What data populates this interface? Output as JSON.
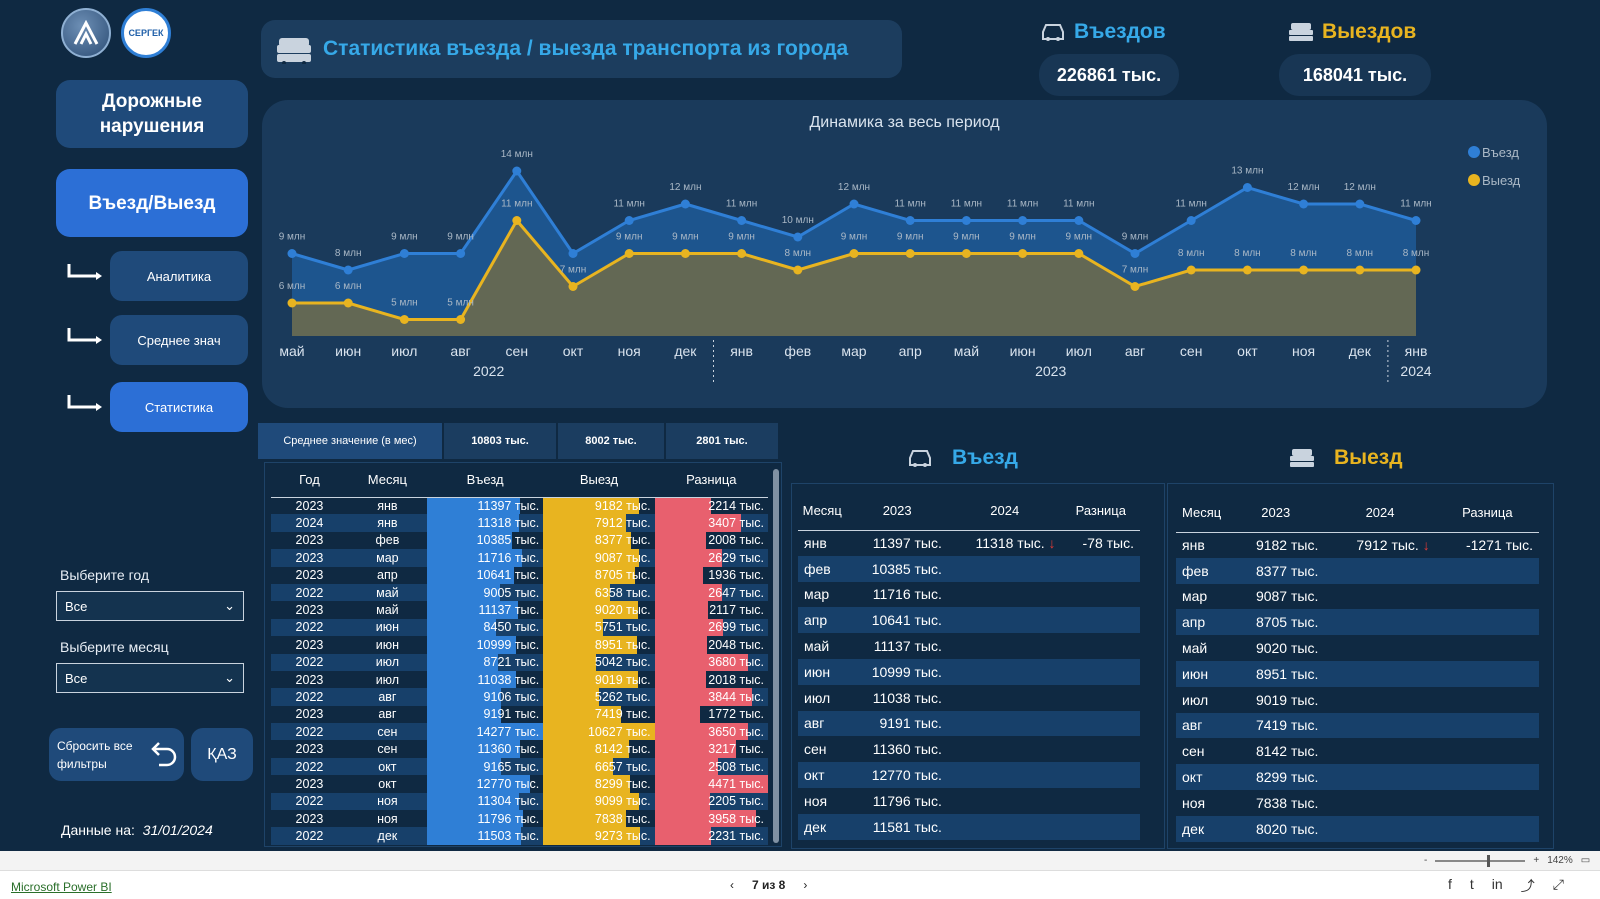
{
  "header": {
    "title": "Статистика въезда / выезда транспорта из города",
    "kpi_in_label": "Въездов",
    "kpi_in_value": "226861 тыс.",
    "kpi_out_label": "Выездов",
    "kpi_out_value": "168041 тыс."
  },
  "sidebar": {
    "logo2_text": "СЕРГЕК",
    "violations": "Дорожные нарушения",
    "entry_exit": "Въезд/Выезд",
    "analytics": "Аналитика",
    "average": "Среднее знач",
    "statistics": "Статистика",
    "year_label": "Выберите год",
    "year_value": "Все",
    "month_label": "Выберите месяц",
    "month_value": "Все",
    "reset": "Сбросить все фильтры",
    "kaz": "ҚАЗ",
    "date_label": "Данные на:",
    "date_value": "31/01/2024"
  },
  "chart_data": {
    "type": "area",
    "title": "Динамика за весь период",
    "categories": [
      "май",
      "июн",
      "июл",
      "авг",
      "сен",
      "окт",
      "ноя",
      "дек",
      "янв",
      "фев",
      "мар",
      "апр",
      "май",
      "июн",
      "июл",
      "авг",
      "сен",
      "окт",
      "ноя",
      "дек",
      "янв"
    ],
    "year_labels": [
      "2022",
      "2023",
      "2024"
    ],
    "series": [
      {
        "name": "Въезд",
        "color": "#2f7fd6",
        "values": [
          9,
          8,
          9,
          9,
          14,
          9,
          11,
          12,
          11,
          10,
          12,
          11,
          11,
          11,
          11,
          9,
          11,
          13,
          12,
          12,
          11
        ],
        "labels": [
          "9 млн",
          "8 млн",
          "9 млн",
          "9 млн",
          "14 млн",
          "",
          "11 млн",
          "12 млн",
          "11 млн",
          "10 млн",
          "12 млн",
          "11 млн",
          "11 млн",
          "11 млн",
          "11 млн",
          "9 млн",
          "11 млн",
          "13 млн",
          "12 млн",
          "12 млн",
          "11 млн"
        ]
      },
      {
        "name": "Выезд",
        "color": "#e8b420",
        "values": [
          6,
          6,
          5,
          5,
          11,
          7,
          9,
          9,
          9,
          8,
          9,
          9,
          9,
          9,
          9,
          7,
          8,
          8,
          8,
          8,
          8
        ],
        "labels": [
          "6 млн",
          "6 млн",
          "5 млн",
          "5 млн",
          "11 млн",
          "7 млн",
          "9 млн",
          "9 млн",
          "9 млн",
          "8 млн",
          "9 млн",
          "9 млн",
          "9 млн",
          "9 млн",
          "9 млн",
          "7 млн",
          "8 млн",
          "8 млн",
          "8 млн",
          "8 млн",
          "8 млн"
        ]
      }
    ],
    "legend": "top-right"
  },
  "avg_strip": {
    "label": "Среднее значение (в мес)",
    "in": "10803 тыс.",
    "out": "8002 тыс.",
    "diff": "2801 тыс."
  },
  "left_table": {
    "headers": [
      "Год",
      "Месяц",
      "Въезд",
      "Выезд",
      "Разница"
    ],
    "rows": [
      [
        "2023",
        "янв",
        "11397 тыс.",
        "9182 тыс.",
        "2214 тыс.",
        11397,
        9182,
        2214
      ],
      [
        "2024",
        "янв",
        "11318 тыс.",
        "7912 тыс.",
        "3407 тыс.",
        11318,
        7912,
        3407
      ],
      [
        "2023",
        "фев",
        "10385 тыс.",
        "8377 тыс.",
        "2008 тыс.",
        10385,
        8377,
        2008
      ],
      [
        "2023",
        "мар",
        "11716 тыс.",
        "9087 тыс.",
        "2629 тыс.",
        11716,
        9087,
        2629
      ],
      [
        "2023",
        "апр",
        "10641 тыс.",
        "8705 тыс.",
        "1936 тыс.",
        10641,
        8705,
        1936
      ],
      [
        "2022",
        "май",
        "9005 тыс.",
        "6358 тыс.",
        "2647 тыс.",
        9005,
        6358,
        2647
      ],
      [
        "2023",
        "май",
        "11137 тыс.",
        "9020 тыс.",
        "2117 тыс.",
        11137,
        9020,
        2117
      ],
      [
        "2022",
        "июн",
        "8450 тыс.",
        "5751 тыс.",
        "2699 тыс.",
        8450,
        5751,
        2699
      ],
      [
        "2023",
        "июн",
        "10999 тыс.",
        "8951 тыс.",
        "2048 тыс.",
        10999,
        8951,
        2048
      ],
      [
        "2022",
        "июл",
        "8721 тыс.",
        "5042 тыс.",
        "3680 тыс.",
        8721,
        5042,
        3680
      ],
      [
        "2023",
        "июл",
        "11038 тыс.",
        "9019 тыс.",
        "2018 тыс.",
        11038,
        9019,
        2018
      ],
      [
        "2022",
        "авг",
        "9106 тыс.",
        "5262 тыс.",
        "3844 тыс.",
        9106,
        5262,
        3844
      ],
      [
        "2023",
        "авг",
        "9191 тыс.",
        "7419 тыс.",
        "1772 тыс.",
        9191,
        7419,
        1772
      ],
      [
        "2022",
        "сен",
        "14277 тыс.",
        "10627 тыс.",
        "3650 тыс.",
        14277,
        10627,
        3650
      ],
      [
        "2023",
        "сен",
        "11360 тыс.",
        "8142 тыс.",
        "3217 тыс.",
        11360,
        8142,
        3217
      ],
      [
        "2022",
        "окт",
        "9165 тыс.",
        "6657 тыс.",
        "2508 тыс.",
        9165,
        6657,
        2508
      ],
      [
        "2023",
        "окт",
        "12770 тыс.",
        "8299 тыс.",
        "4471 тыс.",
        12770,
        8299,
        4471
      ],
      [
        "2022",
        "ноя",
        "11304 тыс.",
        "9099 тыс.",
        "2205 тыс.",
        11304,
        9099,
        2205
      ],
      [
        "2023",
        "ноя",
        "11796 тыс.",
        "7838 тыс.",
        "3958 тыс.",
        11796,
        7838,
        3958
      ],
      [
        "2022",
        "дек",
        "11503 тыс.",
        "9273 тыс.",
        "2231 тыс.",
        11503,
        9273,
        2231
      ]
    ]
  },
  "entry_table": {
    "title": "Въезд",
    "headers": [
      "Месяц",
      "2023",
      "2024",
      "Разница"
    ],
    "rows": [
      [
        "янв",
        "11397 тыс.",
        "11318 тыс.",
        "↓",
        "-78 тыс."
      ],
      [
        "фев",
        "10385 тыс.",
        "",
        "",
        ""
      ],
      [
        "мар",
        "11716 тыс.",
        "",
        "",
        ""
      ],
      [
        "апр",
        "10641 тыс.",
        "",
        "",
        ""
      ],
      [
        "май",
        "11137 тыс.",
        "",
        "",
        ""
      ],
      [
        "июн",
        "10999 тыс.",
        "",
        "",
        ""
      ],
      [
        "июл",
        "11038 тыс.",
        "",
        "",
        ""
      ],
      [
        "авг",
        "9191 тыс.",
        "",
        "",
        ""
      ],
      [
        "сен",
        "11360 тыс.",
        "",
        "",
        ""
      ],
      [
        "окт",
        "12770 тыс.",
        "",
        "",
        ""
      ],
      [
        "ноя",
        "11796 тыс.",
        "",
        "",
        ""
      ],
      [
        "дек",
        "11581 тыс.",
        "",
        "",
        ""
      ]
    ]
  },
  "exit_table": {
    "title": "Выезд",
    "headers": [
      "Месяц",
      "2023",
      "2024",
      "Разница"
    ],
    "rows": [
      [
        "янв",
        "9182 тыс.",
        "7912 тыс.",
        "↓",
        "-1271 тыс."
      ],
      [
        "фев",
        "8377 тыс.",
        "",
        "",
        ""
      ],
      [
        "мар",
        "9087 тыс.",
        "",
        "",
        ""
      ],
      [
        "апр",
        "8705 тыс.",
        "",
        "",
        ""
      ],
      [
        "май",
        "9020 тыс.",
        "",
        "",
        ""
      ],
      [
        "июн",
        "8951 тыс.",
        "",
        "",
        ""
      ],
      [
        "июл",
        "9019 тыс.",
        "",
        "",
        ""
      ],
      [
        "авг",
        "7419 тыс.",
        "",
        "",
        ""
      ],
      [
        "сен",
        "8142 тыс.",
        "",
        "",
        ""
      ],
      [
        "окт",
        "8299 тыс.",
        "",
        "",
        ""
      ],
      [
        "ноя",
        "7838 тыс.",
        "",
        "",
        ""
      ],
      [
        "дек",
        "8020 тыс.",
        "",
        "",
        ""
      ]
    ]
  },
  "footer": {
    "powerbi": "Microsoft Power BI",
    "page": "7 из 8",
    "zoom": "142%"
  },
  "colors": {
    "in": "#2f7fd6",
    "out": "#e8b420",
    "diff": "#e8606e",
    "accent": "#36a9e8"
  }
}
